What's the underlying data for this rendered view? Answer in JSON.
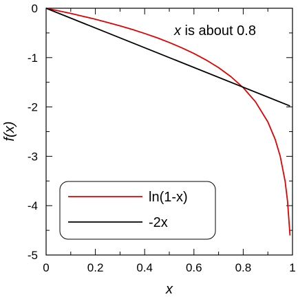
{
  "chart_data": {
    "type": "line",
    "xlabel": "x",
    "ylabel": "f(x)",
    "xlim": [
      0,
      1
    ],
    "ylim": [
      -5,
      0
    ],
    "x_ticks": [
      0,
      0.2,
      0.4,
      0.6,
      0.8,
      1
    ],
    "x_tick_labels": [
      "0",
      "0.2",
      "0.4",
      "0.6",
      "0.8",
      "1"
    ],
    "y_ticks": [
      0,
      -1,
      -2,
      -3,
      -4,
      -5
    ],
    "y_tick_labels": [
      "0",
      "-1",
      "-2",
      "-3",
      "-4",
      "-5"
    ],
    "grid": false,
    "legend_position": "bottom-left",
    "annotation": {
      "var": "x",
      "text": " is about 0.8"
    },
    "series": [
      {
        "name": "ln(1-x)",
        "color": "#e00000",
        "x": [
          0,
          0.05,
          0.1,
          0.15,
          0.2,
          0.25,
          0.3,
          0.35,
          0.4,
          0.45,
          0.5,
          0.55,
          0.6,
          0.65,
          0.7,
          0.75,
          0.8,
          0.85,
          0.9,
          0.93,
          0.95,
          0.97,
          0.98,
          0.99
        ],
        "values": [
          0,
          -0.051,
          -0.105,
          -0.163,
          -0.223,
          -0.288,
          -0.357,
          -0.431,
          -0.511,
          -0.598,
          -0.693,
          -0.799,
          -0.916,
          -1.05,
          -1.204,
          -1.386,
          -1.609,
          -1.897,
          -2.303,
          -2.659,
          -2.996,
          -3.507,
          -3.912,
          -4.605
        ]
      },
      {
        "name": "-2x",
        "color": "#000000",
        "x": [
          0,
          0.99
        ],
        "values": [
          0,
          -1.98
        ]
      }
    ]
  }
}
